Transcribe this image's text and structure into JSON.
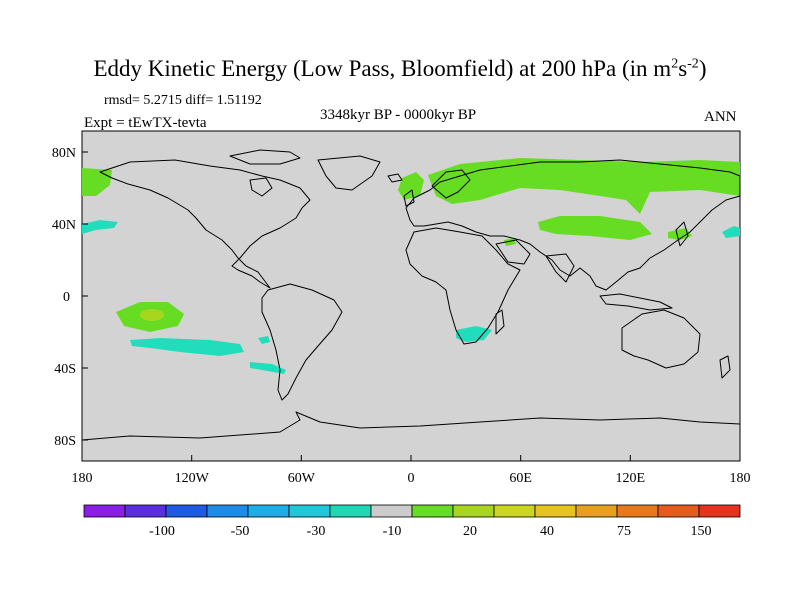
{
  "title": {
    "main": "Eddy Kinetic Energy (Low Pass, Bloomfield) at 200 hPa (in m",
    "sup1": "2",
    "mid": "s",
    "sup2": "-2",
    "end": ")"
  },
  "stats": {
    "rmsd": "rmsd= 5.2715 diff= 1.51192"
  },
  "period": "3348kyr BP - 0000kyr BP",
  "experiment": "Expt = tEwTX-tevta",
  "season": "ANN",
  "axes": {
    "lat_labels": [
      "80N",
      "40N",
      "0",
      "40S",
      "80S"
    ],
    "lon_labels": [
      "180",
      "120W",
      "60W",
      "0",
      "60E",
      "120E",
      "180"
    ]
  },
  "colors": {
    "background": "#d3d3d3",
    "coast": "#000000",
    "pos_low": "#66dd22",
    "pos_mid": "#a8d61e",
    "neg_low": "#22ddbb"
  },
  "colorbar": {
    "colors": [
      "#8a1ee6",
      "#5a2ee0",
      "#1e5ae6",
      "#1e8ce6",
      "#1eaee6",
      "#1ec8d8",
      "#1ed8b4",
      "#cccccc",
      "#66dd22",
      "#a8d61e",
      "#cdd61e",
      "#e6c31e",
      "#e6a01e",
      "#e6781e",
      "#e65a1e",
      "#e6321e"
    ],
    "labels": [
      "-100",
      "-50",
      "-30",
      "-10",
      "20",
      "40",
      "75",
      "150"
    ]
  },
  "regions": [
    {
      "name": "north-america-high",
      "sign": "positive"
    },
    {
      "name": "eurasia-high",
      "sign": "positive"
    },
    {
      "name": "central-asia-high",
      "sign": "positive"
    },
    {
      "name": "south-pacific-high",
      "sign": "positive"
    },
    {
      "name": "south-pacific-low",
      "sign": "negative"
    },
    {
      "name": "south-africa-low",
      "sign": "negative"
    },
    {
      "name": "north-pacific-low",
      "sign": "negative"
    }
  ]
}
